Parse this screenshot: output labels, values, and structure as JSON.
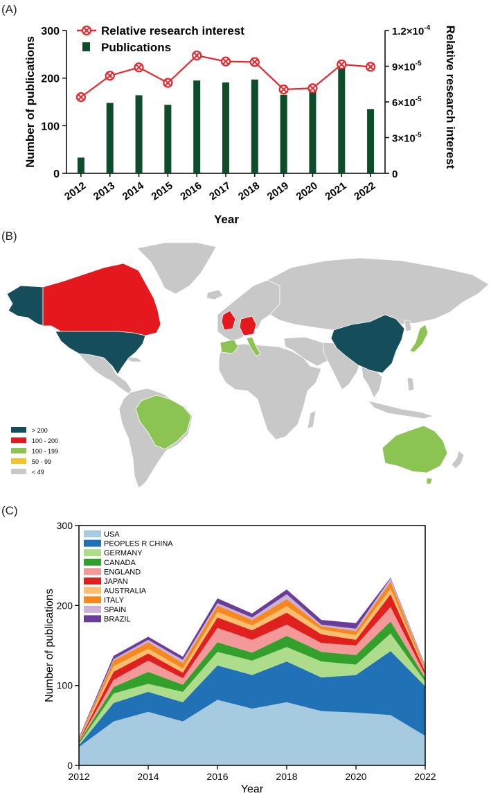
{
  "panels": {
    "a": "(A)",
    "b": "(B)",
    "c": "(C)"
  },
  "colors": {
    "bar": "#0e4d2a",
    "line": "#e8272d",
    "map_land": "#c8c8c8",
    "map_gt200": "#154e5a",
    "map_100_200": "#e5181e",
    "map_100_199": "#8cc454",
    "map_50_99": "#f4c32a",
    "map_lt49": "#c8c8c8"
  },
  "chart_a": {
    "type": "bar+line",
    "categories": [
      "2012",
      "2013",
      "2014",
      "2015",
      "2016",
      "2017",
      "2018",
      "2019",
      "2020",
      "2021",
      "2022"
    ],
    "publications": [
      33,
      148,
      164,
      144,
      195,
      191,
      197,
      165,
      175,
      236,
      135
    ],
    "relative_interest": [
      6.4e-05,
      8.2e-05,
      8.9e-05,
      7.6e-05,
      9.9e-05,
      9.4e-05,
      9.35e-05,
      7.05e-05,
      7.15e-05,
      9.15e-05,
      8.95e-05
    ],
    "xlabel": "Year",
    "ylabel_left": "Number of publications",
    "ylabel_right": "Relative research interest",
    "ylim_left": [
      0,
      300
    ],
    "yticks_left": [
      "0",
      "100",
      "200",
      "300"
    ],
    "ylim_right": [
      0,
      0.00012
    ],
    "yticks_right": [
      {
        "mant": "0",
        "exp": ""
      },
      {
        "mant": "3×10",
        "exp": "-5"
      },
      {
        "mant": "6×10",
        "exp": "-5"
      },
      {
        "mant": "9×10",
        "exp": "-5"
      },
      {
        "mant": "1.2×10",
        "exp": "-4"
      }
    ],
    "legend": {
      "line_label": "Relative research interest",
      "bar_label": "Publications"
    }
  },
  "map_b": {
    "legend": [
      {
        "label": "> 200",
        "color": "#154e5a"
      },
      {
        "label": "100 - 200",
        "color": "#e5181e"
      },
      {
        "label": "100 - 199",
        "color": "#8cc454"
      },
      {
        "label": "50 - 99",
        "color": "#f4c32a"
      },
      {
        "label": "< 49",
        "color": "#c8c8c8"
      }
    ]
  },
  "chart_data": {
    "type": "area",
    "x": [
      2012,
      2013,
      2014,
      2015,
      2016,
      2017,
      2018,
      2019,
      2020,
      2021,
      2022
    ],
    "series": [
      {
        "name": "USA",
        "color": "#a6cbe0",
        "values": [
          23,
          55,
          67,
          55,
          82,
          71,
          79,
          68,
          66,
          63,
          37
        ]
      },
      {
        "name": "PEOPLES R CHINA",
        "color": "#2071b5",
        "values": [
          2,
          23,
          25,
          24,
          43,
          42,
          51,
          42,
          47,
          80,
          62
        ]
      },
      {
        "name": "GERMANY",
        "color": "#addc8b",
        "values": [
          2,
          12,
          10,
          13,
          17,
          18,
          18,
          20,
          13,
          22,
          6
        ]
      },
      {
        "name": "CANADA",
        "color": "#33a02c",
        "values": [
          2,
          8,
          15,
          9,
          12,
          10,
          14,
          12,
          12,
          15,
          4
        ]
      },
      {
        "name": "ENGLAND",
        "color": "#f3999a",
        "values": [
          1,
          9,
          14,
          8,
          18,
          16,
          14,
          11,
          12,
          18,
          4
        ]
      },
      {
        "name": "JAPAN",
        "color": "#e0201f",
        "values": [
          1,
          10,
          9,
          7,
          13,
          12,
          15,
          11,
          7,
          16,
          4
        ]
      },
      {
        "name": "AUSTRALIA",
        "color": "#fdbf6f",
        "values": [
          1,
          7,
          6,
          5,
          7,
          6,
          8,
          6,
          6,
          7,
          2
        ]
      },
      {
        "name": "ITALY",
        "color": "#f6881f",
        "values": [
          1,
          7,
          8,
          7,
          8,
          7,
          9,
          4,
          5,
          9,
          3
        ]
      },
      {
        "name": "SPAIN",
        "color": "#cab2d6",
        "values": [
          1,
          2,
          3,
          4,
          3,
          3,
          6,
          2,
          3,
          4,
          2
        ]
      },
      {
        "name": "BRAZIL",
        "color": "#6a3d9a",
        "values": [
          1,
          4,
          4,
          4,
          6,
          5,
          6,
          6,
          7,
          1,
          1
        ]
      }
    ],
    "xlabel": "Year",
    "ylabel": "Number of publications",
    "xticks": [
      "2012",
      "2014",
      "2016",
      "2018",
      "2020",
      "2022"
    ],
    "yticks": [
      "0",
      "100",
      "200",
      "300"
    ],
    "xlim": [
      2012,
      2022
    ],
    "ylim": [
      0,
      300
    ],
    "legend_position": "top-left"
  }
}
